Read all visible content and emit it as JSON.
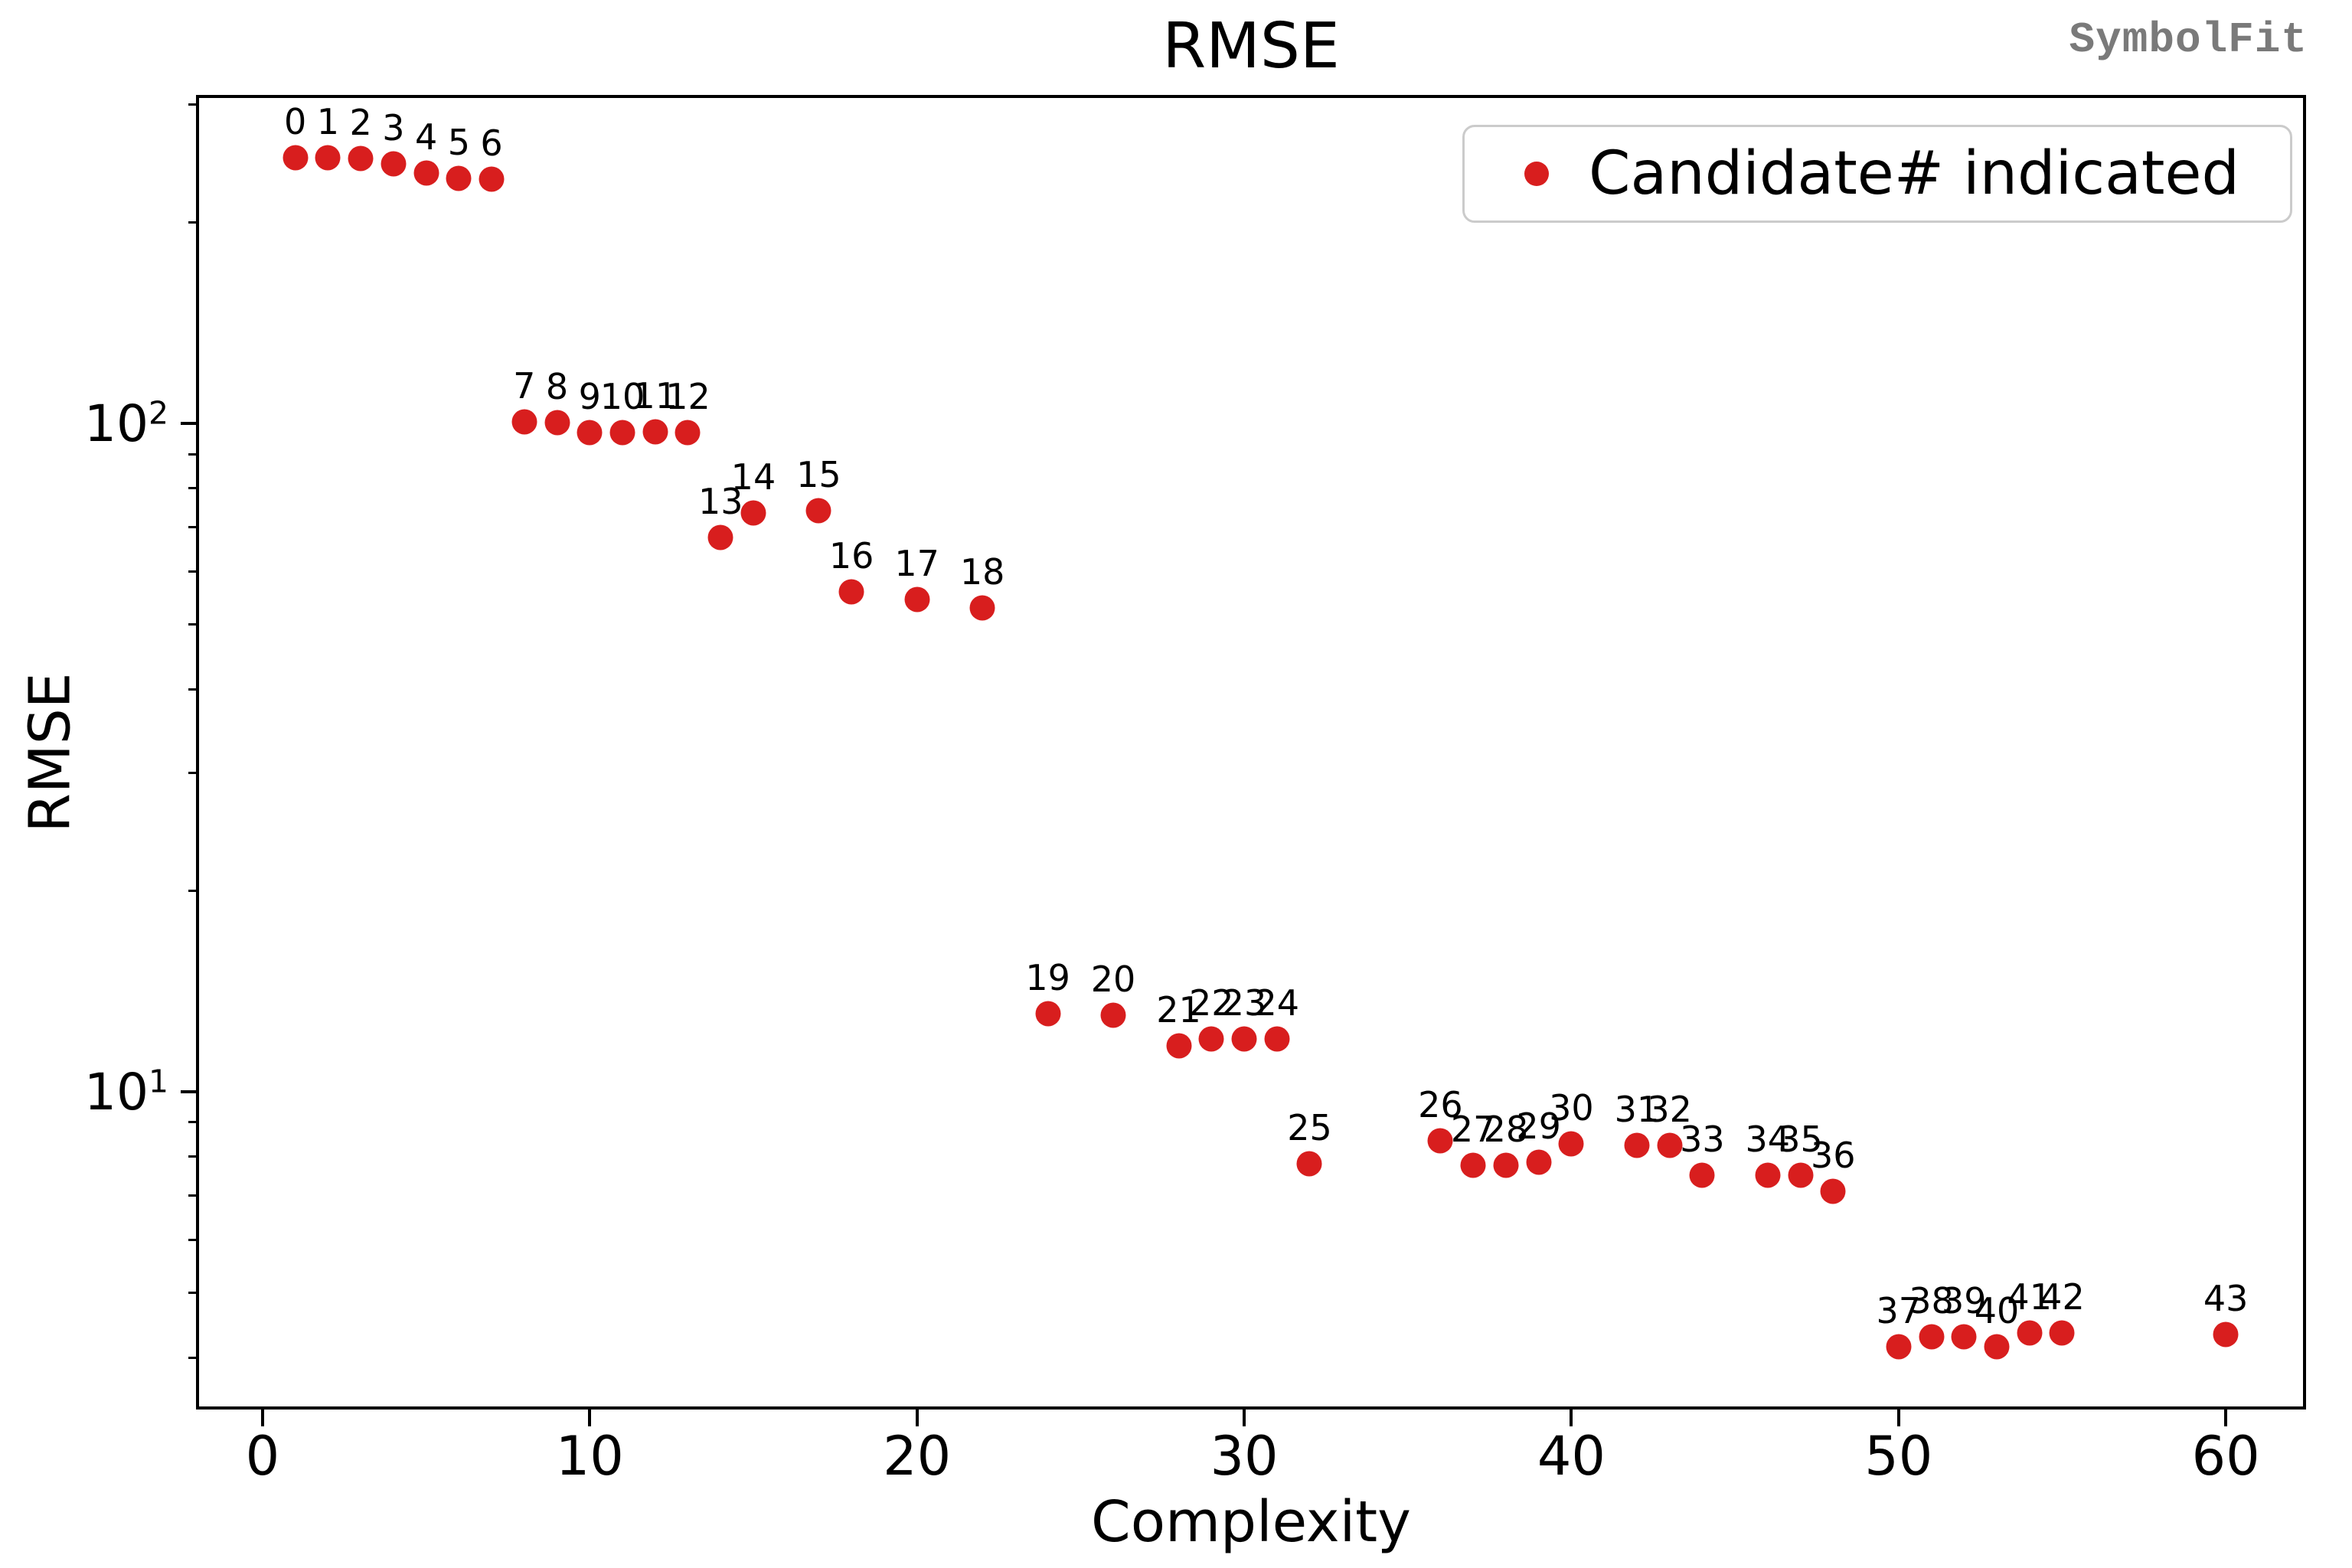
{
  "title": "RMSE",
  "watermark": "SymbolFit",
  "xlabel": "Complexity",
  "ylabel": "RMSE",
  "legend": {
    "label": "Candidate# indicated",
    "marker_color": "#d81e1e"
  },
  "chart_data": {
    "type": "scatter",
    "title": "RMSE",
    "xlabel": "Complexity",
    "ylabel": "RMSE",
    "y_scale": "log",
    "grid": false,
    "legend_position": "upper right",
    "marker_color": "#d81e1e",
    "annotation": "each point labeled with its candidate number",
    "xlim": [
      -1.94,
      62.36
    ],
    "ylim": [
      3.38,
      307
    ],
    "x_ticks": [
      0,
      10,
      20,
      30,
      40,
      50,
      60
    ],
    "y_major_ticks": [
      {
        "value": 100,
        "base": "10",
        "exponent": "2"
      },
      {
        "value": 10,
        "base": "10",
        "exponent": "1"
      }
    ],
    "points": [
      {
        "candidate": 0,
        "complexity": 1,
        "rmse": 250
      },
      {
        "candidate": 1,
        "complexity": 2,
        "rmse": 250
      },
      {
        "candidate": 2,
        "complexity": 3,
        "rmse": 249
      },
      {
        "candidate": 3,
        "complexity": 4,
        "rmse": 245
      },
      {
        "candidate": 4,
        "complexity": 5,
        "rmse": 237
      },
      {
        "candidate": 5,
        "complexity": 6,
        "rmse": 233
      },
      {
        "candidate": 6,
        "complexity": 7,
        "rmse": 232
      },
      {
        "candidate": 7,
        "complexity": 8,
        "rmse": 100.5
      },
      {
        "candidate": 8,
        "complexity": 9,
        "rmse": 100.3
      },
      {
        "candidate": 9,
        "complexity": 10,
        "rmse": 97
      },
      {
        "candidate": 10,
        "complexity": 11,
        "rmse": 97
      },
      {
        "candidate": 11,
        "complexity": 12,
        "rmse": 97.3
      },
      {
        "candidate": 12,
        "complexity": 13,
        "rmse": 97
      },
      {
        "candidate": 13,
        "complexity": 14,
        "rmse": 67.5
      },
      {
        "candidate": 14,
        "complexity": 15,
        "rmse": 73.5
      },
      {
        "candidate": 15,
        "complexity": 17,
        "rmse": 74
      },
      {
        "candidate": 16,
        "complexity": 18,
        "rmse": 56
      },
      {
        "candidate": 17,
        "complexity": 20,
        "rmse": 54.5
      },
      {
        "candidate": 18,
        "complexity": 22,
        "rmse": 53
      },
      {
        "candidate": 19,
        "complexity": 24,
        "rmse": 13.1
      },
      {
        "candidate": 20,
        "complexity": 26,
        "rmse": 13.0
      },
      {
        "candidate": 21,
        "complexity": 28,
        "rmse": 11.7
      },
      {
        "candidate": 22,
        "complexity": 29,
        "rmse": 12.0
      },
      {
        "candidate": 23,
        "complexity": 30,
        "rmse": 12.0
      },
      {
        "candidate": 24,
        "complexity": 31,
        "rmse": 12.0
      },
      {
        "candidate": 25,
        "complexity": 32,
        "rmse": 7.8
      },
      {
        "candidate": 26,
        "complexity": 36,
        "rmse": 8.45
      },
      {
        "candidate": 27,
        "complexity": 37,
        "rmse": 7.75
      },
      {
        "candidate": 28,
        "complexity": 38,
        "rmse": 7.75
      },
      {
        "candidate": 29,
        "complexity": 39,
        "rmse": 7.85
      },
      {
        "candidate": 30,
        "complexity": 40,
        "rmse": 8.35
      },
      {
        "candidate": 31,
        "complexity": 42,
        "rmse": 8.3
      },
      {
        "candidate": 32,
        "complexity": 43,
        "rmse": 8.3
      },
      {
        "candidate": 33,
        "complexity": 44,
        "rmse": 7.5
      },
      {
        "candidate": 34,
        "complexity": 46,
        "rmse": 7.5
      },
      {
        "candidate": 35,
        "complexity": 47,
        "rmse": 7.5
      },
      {
        "candidate": 36,
        "complexity": 48,
        "rmse": 7.1
      },
      {
        "candidate": 37,
        "complexity": 50,
        "rmse": 4.15
      },
      {
        "candidate": 38,
        "complexity": 51,
        "rmse": 4.3
      },
      {
        "candidate": 39,
        "complexity": 52,
        "rmse": 4.3
      },
      {
        "candidate": 40,
        "complexity": 53,
        "rmse": 4.15
      },
      {
        "candidate": 41,
        "complexity": 54,
        "rmse": 4.35
      },
      {
        "candidate": 42,
        "complexity": 55,
        "rmse": 4.35
      },
      {
        "candidate": 43,
        "complexity": 60,
        "rmse": 4.33
      }
    ]
  }
}
